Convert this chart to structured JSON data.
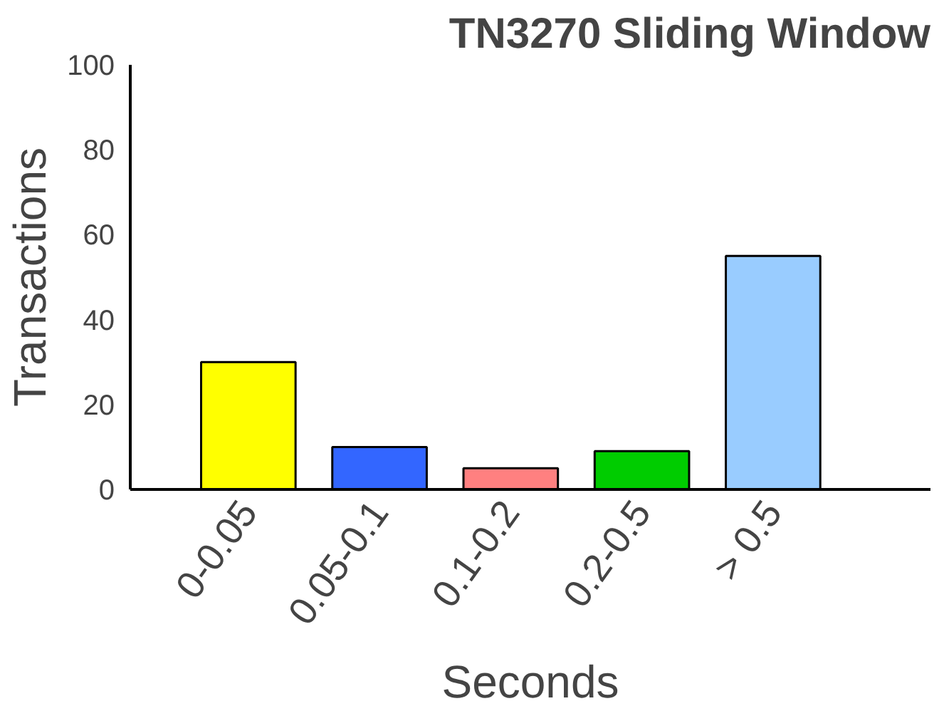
{
  "chart_data": {
    "type": "bar",
    "title": "TN3270 Sliding Window",
    "xlabel": "Seconds",
    "ylabel": "Transactions",
    "categories": [
      "0-0.05",
      "0.05-0.1",
      "0.1-0.2",
      "0.2-0.5",
      "> 0.5"
    ],
    "values": [
      30,
      10,
      5,
      9,
      55
    ],
    "colors": [
      "#ffff00",
      "#3366ff",
      "#ff8080",
      "#00cc00",
      "#99ccff"
    ],
    "ylim": [
      0,
      100
    ],
    "yticks": [
      0,
      20,
      40,
      60,
      80,
      100
    ],
    "grid": false
  }
}
